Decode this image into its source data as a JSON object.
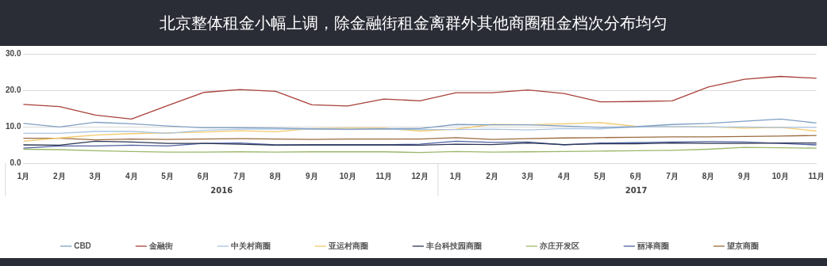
{
  "chart_data": {
    "type": "line",
    "title": "北京整体租金小幅上调，除金融街租金离群外其他商圈租金档次分布均匀",
    "categories": [
      "1月",
      "2月",
      "3月",
      "4月",
      "5月",
      "6月",
      "7月",
      "8月",
      "9月",
      "10月",
      "11月",
      "12月",
      "1月",
      "2月",
      "3月",
      "4月",
      "5月",
      "6月",
      "7月",
      "8月",
      "9月",
      "10月",
      "11月"
    ],
    "annotations": [
      "2016",
      "2017"
    ],
    "ylim": [
      0,
      30
    ],
    "yticks": [
      {
        "value": 0,
        "label": "0.0"
      },
      {
        "value": 10,
        "label": "10.0"
      },
      {
        "value": 20,
        "label": "20.0"
      },
      {
        "value": 30,
        "label": "30.0"
      }
    ],
    "grid": "y",
    "legend": "bottom",
    "marker": "none",
    "line_style": "solid",
    "series": [
      {
        "name": "CBD",
        "color": "#7f9fc4",
        "values": [
          10.9,
          9.9,
          11.2,
          10.8,
          10.2,
          9.7,
          9.7,
          9.6,
          9.4,
          9.3,
          9.4,
          9.5,
          10.6,
          10.5,
          10.5,
          10.2,
          9.8,
          10.0,
          10.6,
          10.9,
          11.5,
          12.1,
          11.0
        ]
      },
      {
        "name": "金融街",
        "color": "#a8413a",
        "values": [
          16.1,
          15.5,
          13.2,
          12.1,
          15.8,
          19.4,
          20.2,
          19.7,
          16.0,
          15.7,
          17.6,
          17.1,
          19.3,
          19.3,
          20.1,
          19.1,
          16.8,
          16.9,
          17.1,
          20.9,
          23.0,
          23.8,
          23.3
        ]
      },
      {
        "name": "中关村商圈",
        "color": "#a9c5e3",
        "values": [
          8.2,
          8.2,
          8.7,
          8.7,
          8.2,
          9.0,
          9.3,
          9.3,
          9.3,
          9.2,
          9.3,
          9.2,
          9.2,
          9.3,
          9.1,
          9.5,
          9.4,
          9.9,
          10.0,
          9.9,
          9.9,
          9.8,
          9.8
        ]
      },
      {
        "name": "亚运村商圈",
        "color": "#f2c96b",
        "values": [
          6.0,
          6.9,
          7.7,
          8.1,
          8.3,
          8.5,
          8.9,
          8.6,
          9.5,
          9.6,
          9.6,
          8.8,
          9.3,
          10.6,
          10.5,
          10.8,
          11.1,
          10.1,
          9.9,
          10.0,
          9.6,
          9.8,
          8.8
        ]
      },
      {
        "name": "丰台科技园商圈",
        "color": "#2b3553",
        "values": [
          5.0,
          4.9,
          6.0,
          5.8,
          5.4,
          5.4,
          5.2,
          4.9,
          5.0,
          5.0,
          5.0,
          4.9,
          5.2,
          5.1,
          5.5,
          5.1,
          5.3,
          5.3,
          5.5,
          5.4,
          5.4,
          5.5,
          5.5
        ]
      },
      {
        "name": "亦庄开发区",
        "color": "#9bb86a",
        "values": [
          3.8,
          3.7,
          3.4,
          3.2,
          3.0,
          3.0,
          3.1,
          3.0,
          3.1,
          3.1,
          3.1,
          2.9,
          3.2,
          3.0,
          3.1,
          3.2,
          3.3,
          3.4,
          3.5,
          3.8,
          4.3,
          4.2,
          4.1
        ]
      },
      {
        "name": "丽泽商圈",
        "color": "#4f5f9e",
        "values": [
          4.1,
          4.7,
          4.7,
          4.9,
          4.7,
          5.4,
          5.5,
          5.0,
          5.0,
          5.0,
          5.0,
          5.2,
          6.0,
          5.7,
          5.8,
          5.0,
          5.5,
          5.6,
          5.8,
          5.9,
          5.8,
          5.4,
          5.0
        ]
      },
      {
        "name": "望京商圈",
        "color": "#9c6b3f",
        "values": [
          6.8,
          6.8,
          6.4,
          6.6,
          6.5,
          6.6,
          6.7,
          6.6,
          6.5,
          6.6,
          6.6,
          6.6,
          7.0,
          6.5,
          6.7,
          6.9,
          7.0,
          7.1,
          7.2,
          7.2,
          7.3,
          7.4,
          7.6
        ]
      }
    ]
  }
}
